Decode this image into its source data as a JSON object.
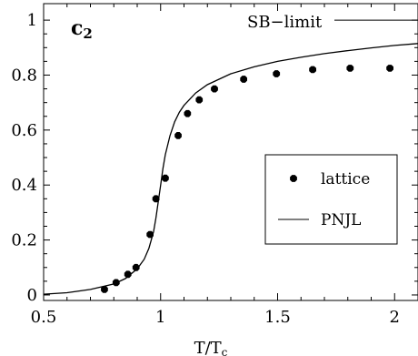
{
  "chart_data": {
    "type": "scatter",
    "title": "",
    "panel_label_main": "c",
    "panel_label_sub": "2",
    "xlabel_main": "T/T",
    "xlabel_sub": "c",
    "ylabel": "",
    "xlim": [
      0.5,
      2.1
    ],
    "ylim": [
      -0.02,
      1.06
    ],
    "xticks": [
      0.5,
      1,
      1.5,
      2
    ],
    "xtick_labels": [
      "0.5",
      "1",
      "1.5",
      "2"
    ],
    "yticks": [
      0,
      0.2,
      0.4,
      0.6,
      0.8,
      1
    ],
    "ytick_labels": [
      "0",
      "0.2",
      "0.4",
      "0.6",
      "0.8",
      "1"
    ],
    "grid": false,
    "legend_position": "right-middle",
    "sb_limit": {
      "label": "SB−limit",
      "y": 1.0
    },
    "series": [
      {
        "name": "lattice",
        "kind": "markers",
        "x": [
          0.76,
          0.81,
          0.86,
          0.895,
          0.955,
          0.98,
          1.02,
          1.075,
          1.115,
          1.165,
          1.23,
          1.355,
          1.495,
          1.65,
          1.81,
          1.98
        ],
        "y": [
          0.02,
          0.045,
          0.075,
          0.1,
          0.22,
          0.35,
          0.425,
          0.58,
          0.66,
          0.71,
          0.75,
          0.785,
          0.805,
          0.82,
          0.825,
          0.825
        ]
      },
      {
        "name": "PNJL",
        "kind": "line",
        "x": [
          0.5,
          0.6,
          0.7,
          0.8,
          0.85,
          0.9,
          0.93,
          0.95,
          0.97,
          0.98,
          0.99,
          1.0,
          1.01,
          1.02,
          1.04,
          1.06,
          1.08,
          1.1,
          1.15,
          1.2,
          1.3,
          1.4,
          1.5,
          1.6,
          1.7,
          1.8,
          1.9,
          2.0,
          2.1
        ],
        "y": [
          0.003,
          0.008,
          0.02,
          0.04,
          0.06,
          0.095,
          0.13,
          0.17,
          0.23,
          0.28,
          0.34,
          0.4,
          0.46,
          0.51,
          0.58,
          0.63,
          0.665,
          0.69,
          0.735,
          0.765,
          0.805,
          0.83,
          0.85,
          0.865,
          0.878,
          0.889,
          0.899,
          0.908,
          0.915
        ]
      }
    ]
  }
}
